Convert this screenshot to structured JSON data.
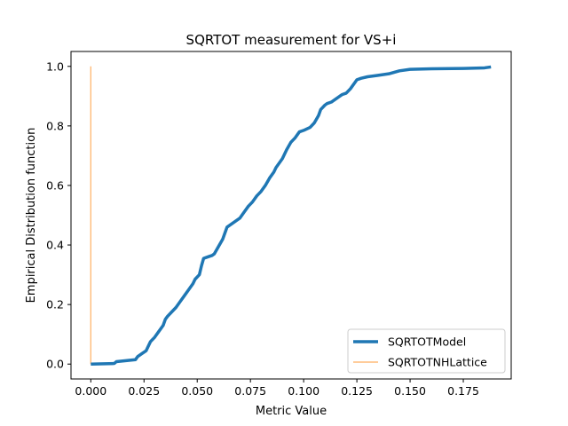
{
  "chart_data": {
    "type": "line",
    "title": "SQRTOT measurement for VS+i",
    "xlabel": "Metric Value",
    "ylabel": "Empirical Distribution function",
    "xlim": [
      -0.0093,
      0.1975
    ],
    "ylim": [
      -0.05,
      1.05
    ],
    "xticks": [
      0.0,
      0.025,
      0.05,
      0.075,
      0.1,
      0.125,
      0.15,
      0.175
    ],
    "xtick_labels": [
      "0.000",
      "0.025",
      "0.050",
      "0.075",
      "0.100",
      "0.125",
      "0.150",
      "0.175"
    ],
    "yticks": [
      0.0,
      0.2,
      0.4,
      0.6,
      0.8,
      1.0
    ],
    "ytick_labels": [
      "0.0",
      "0.2",
      "0.4",
      "0.6",
      "0.8",
      "1.0"
    ],
    "grid": false,
    "legend_position": "lower-right",
    "series": [
      {
        "name": "SQRTOTModel",
        "color": "#1f77b4",
        "style": "thick",
        "x": [
          0.0,
          0.011,
          0.012,
          0.021,
          0.022,
          0.024,
          0.026,
          0.027,
          0.028,
          0.03,
          0.032,
          0.034,
          0.035,
          0.036,
          0.038,
          0.04,
          0.042,
          0.044,
          0.046,
          0.048,
          0.049,
          0.051,
          0.052,
          0.053,
          0.055,
          0.057,
          0.058,
          0.06,
          0.062,
          0.063,
          0.064,
          0.066,
          0.068,
          0.07,
          0.072,
          0.074,
          0.076,
          0.078,
          0.08,
          0.082,
          0.084,
          0.086,
          0.087,
          0.088,
          0.09,
          0.092,
          0.094,
          0.096,
          0.098,
          0.1,
          0.103,
          0.105,
          0.107,
          0.108,
          0.11,
          0.111,
          0.113,
          0.115,
          0.118,
          0.12,
          0.122,
          0.123,
          0.124,
          0.125,
          0.127,
          0.13,
          0.135,
          0.14,
          0.145,
          0.15,
          0.16,
          0.175,
          0.185,
          0.188
        ],
        "y": [
          0.0,
          0.002,
          0.008,
          0.015,
          0.025,
          0.035,
          0.045,
          0.06,
          0.075,
          0.09,
          0.11,
          0.13,
          0.15,
          0.16,
          0.175,
          0.19,
          0.21,
          0.23,
          0.25,
          0.27,
          0.285,
          0.3,
          0.33,
          0.355,
          0.36,
          0.365,
          0.37,
          0.395,
          0.42,
          0.44,
          0.46,
          0.47,
          0.48,
          0.49,
          0.51,
          0.53,
          0.545,
          0.565,
          0.58,
          0.6,
          0.625,
          0.645,
          0.66,
          0.67,
          0.69,
          0.72,
          0.745,
          0.76,
          0.78,
          0.785,
          0.795,
          0.81,
          0.835,
          0.855,
          0.87,
          0.875,
          0.88,
          0.89,
          0.905,
          0.91,
          0.925,
          0.935,
          0.945,
          0.955,
          0.96,
          0.965,
          0.97,
          0.975,
          0.985,
          0.99,
          0.992,
          0.993,
          0.995,
          0.998
        ]
      },
      {
        "name": "SQRTOTNHLattice",
        "color": "#ffbb78",
        "style": "thin",
        "x": [
          0.0,
          0.0
        ],
        "y": [
          0.0,
          1.0
        ]
      }
    ]
  }
}
